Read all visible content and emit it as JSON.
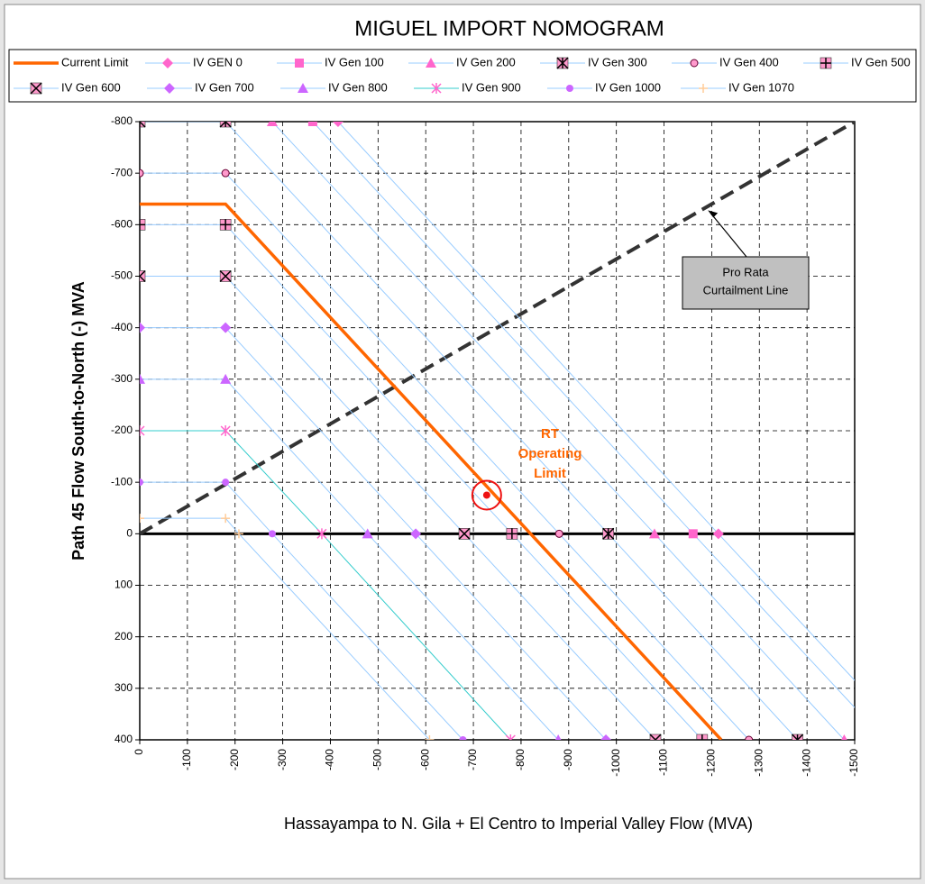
{
  "chart_data": {
    "type": "line",
    "title": "MIGUEL IMPORT NOMOGRAM",
    "x_label": "Hassayampa to N. Gila + El Centro to Imperial Valley Flow  (MVA)",
    "y_label": "Path 45 Flow South-to-North (-) MVA",
    "xlim": [
      0,
      -1500
    ],
    "ylim": [
      -800,
      400
    ],
    "xticks": [
      0,
      -100,
      -200,
      -300,
      -400,
      -500,
      -600,
      -700,
      -800,
      -900,
      -1000,
      -1100,
      -1200,
      -1300,
      -1400,
      -1500
    ],
    "yticks": [
      -800,
      -700,
      -600,
      -500,
      -400,
      -300,
      -200,
      -100,
      0,
      100,
      200,
      300,
      400
    ],
    "grid": true,
    "series": [
      {
        "name": "Current Limit",
        "color": "#FF6600",
        "marker": "none",
        "marker_color": "#FF6600",
        "x": [
          0,
          -180,
          -1220
        ],
        "y": [
          -640,
          -640,
          400
        ]
      },
      {
        "name": "IV GEN 0",
        "color": "#99CCFF",
        "marker": "diamond",
        "marker_color": "#FF66CC",
        "x": [
          -416,
          -1214,
          -1616
        ],
        "y": [
          -800,
          0,
          400
        ]
      },
      {
        "name": "IV Gen 100",
        "color": "#99CCFF",
        "marker": "square",
        "marker_color": "#FF66CC",
        "x": [
          -363,
          -1161,
          -1563
        ],
        "y": [
          -800,
          0,
          400
        ]
      },
      {
        "name": "IV Gen 200",
        "color": "#99CCFF",
        "marker": "triangle",
        "marker_color": "#FF66CC",
        "x": [
          -278,
          -1080,
          -1478
        ],
        "y": [
          -800,
          0,
          400
        ]
      },
      {
        "name": "IV Gen 300",
        "color": "#99CCFF",
        "marker": "star-square",
        "marker_color": "#FF99CC",
        "x": [
          0,
          -180,
          -983,
          -1380
        ],
        "y": [
          -800,
          -800,
          0,
          400
        ]
      },
      {
        "name": "IV Gen 400",
        "color": "#99CCFF",
        "marker": "circle",
        "marker_color": "#FF99CC",
        "x": [
          0,
          -180,
          -880,
          -1278
        ],
        "y": [
          -700,
          -700,
          0,
          400
        ]
      },
      {
        "name": "IV Gen 500",
        "color": "#99CCFF",
        "marker": "plus-square",
        "marker_color": "#FF99CC",
        "x": [
          0,
          -180,
          -781,
          -1180
        ],
        "y": [
          -600,
          -600,
          0,
          400
        ]
      },
      {
        "name": "IV Gen 600",
        "color": "#99CCFF",
        "marker": "x-square",
        "marker_color": "#FF99CC",
        "x": [
          0,
          -180,
          -681,
          -1082
        ],
        "y": [
          -500,
          -500,
          0,
          400
        ]
      },
      {
        "name": "IV Gen 700",
        "color": "#99CCFF",
        "marker": "diamond",
        "marker_color": "#CC66FF",
        "x": [
          0,
          -180,
          -579,
          -978
        ],
        "y": [
          -400,
          -400,
          0,
          400
        ]
      },
      {
        "name": "IV Gen 800",
        "color": "#99CCFF",
        "marker": "triangle",
        "marker_color": "#CC66FF",
        "x": [
          0,
          -180,
          -478,
          -878
        ],
        "y": [
          -300,
          -300,
          0,
          400
        ]
      },
      {
        "name": "IV Gen 900",
        "color": "#33CCCC",
        "marker": "asterisk",
        "marker_color": "#FF66CC",
        "x": [
          0,
          -180,
          -382,
          -778
        ],
        "y": [
          -200,
          -200,
          0,
          400
        ]
      },
      {
        "name": "IV Gen 1000",
        "color": "#99CCFF",
        "marker": "circle-filled",
        "marker_color": "#CC66FF",
        "x": [
          0,
          -180,
          -278,
          -678
        ],
        "y": [
          -100,
          -100,
          0,
          400
        ]
      },
      {
        "name": "IV Gen 1070",
        "color": "#99CCFF",
        "marker": "plus",
        "marker_color": "#FFCC99",
        "x": [
          0,
          -180,
          -208,
          -608
        ],
        "y": [
          -30,
          -30,
          0,
          400
        ]
      }
    ],
    "reference_line": {
      "x": [
        0,
        -1500
      ],
      "y": [
        0,
        -800
      ],
      "color": "#333333"
    },
    "annotations": [
      {
        "text": [
          "Pro Rata",
          "Curtailment Line"
        ],
        "x": -1192,
        "y": -628
      },
      {
        "text": [
          "RT",
          "Operating",
          "Limit"
        ],
        "x": -728,
        "y": -75,
        "color": "#FF6600",
        "point_color": "#EE1111"
      }
    ]
  }
}
